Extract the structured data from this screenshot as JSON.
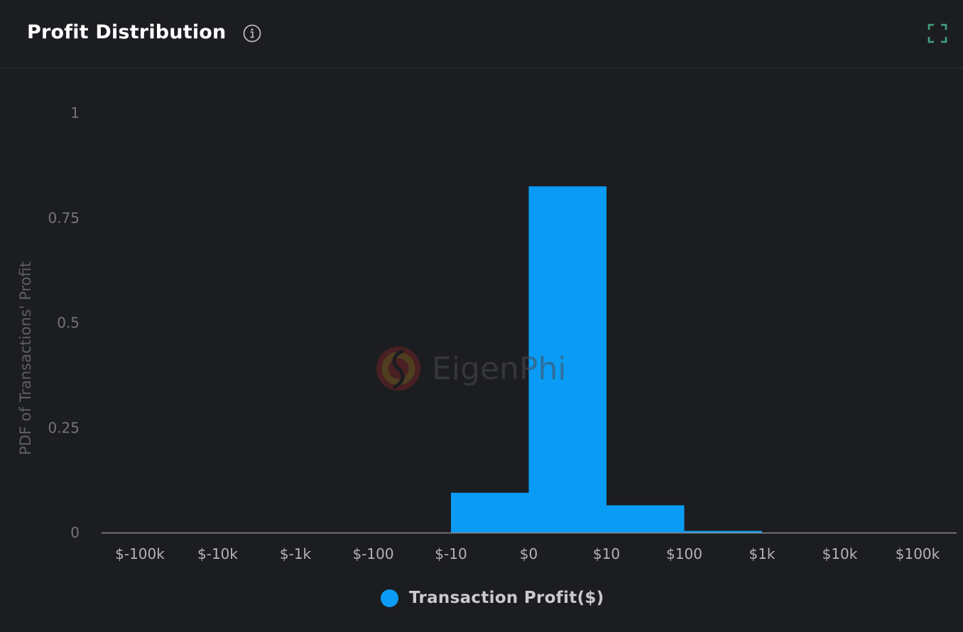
{
  "header": {
    "title": "Profit Distribution",
    "info_icon": "info-icon",
    "expand_icon": "fullscreen-icon"
  },
  "watermark": {
    "text": "EigenPhi",
    "icon": "eigenphi-logo-icon"
  },
  "colors": {
    "background": "#1c1d21",
    "bar": "#0a9cf5",
    "axis": "#8a8b90",
    "expand_icon": "#3fa37c"
  },
  "chart_data": {
    "type": "bar",
    "title": "",
    "xlabel": "",
    "ylabel": "PDF of Transactions' Profit",
    "ylim": [
      0,
      1
    ],
    "yticks": [
      "0",
      "0.25",
      "0.5",
      "0.75",
      "1"
    ],
    "yticks_values": [
      0,
      0.25,
      0.5,
      0.75,
      1
    ],
    "xticks": [
      "$-100k",
      "$-10k",
      "$-1k",
      "$-100",
      "$-10",
      "$0",
      "$10",
      "$100",
      "$1k",
      "$10k",
      "$100k"
    ],
    "bins": [
      {
        "from": "$-100k",
        "to": "$-10k",
        "value": 0
      },
      {
        "from": "$-10k",
        "to": "$-1k",
        "value": 0
      },
      {
        "from": "$-1k",
        "to": "$-100",
        "value": 0
      },
      {
        "from": "$-100",
        "to": "$-10",
        "value": 0
      },
      {
        "from": "$-10",
        "to": "$0",
        "value": 0.095
      },
      {
        "from": "$0",
        "to": "$10",
        "value": 0.825
      },
      {
        "from": "$10",
        "to": "$100",
        "value": 0.065
      },
      {
        "from": "$100",
        "to": "$1k",
        "value": 0.004
      },
      {
        "from": "$1k",
        "to": "$10k",
        "value": 0
      },
      {
        "from": "$10k",
        "to": "$100k",
        "value": 0
      }
    ],
    "grid": false,
    "legend_position": "bottom-center",
    "series": [
      {
        "name": "Transaction Profit($)",
        "color": "#0a9cf5"
      }
    ]
  }
}
